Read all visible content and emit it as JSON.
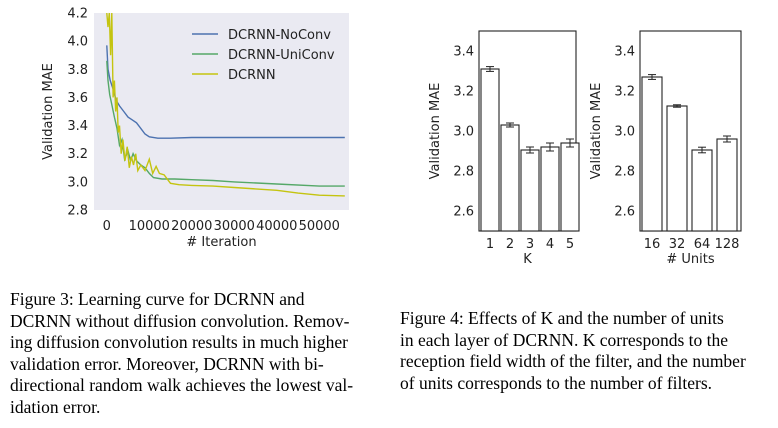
{
  "figure3": {
    "chart_data": {
      "type": "line",
      "ylabel": "Validation MAE",
      "xlabel": "# Iteration",
      "xlim": [
        -3000,
        57000
      ],
      "ylim": [
        2.8,
        4.2
      ],
      "xticks": [
        0,
        10000,
        20000,
        30000,
        40000,
        50000
      ],
      "yticks": [
        2.8,
        3.0,
        3.2,
        3.4,
        3.6,
        3.8,
        4.0,
        4.2
      ],
      "xtick_labels": [
        "0",
        "10000",
        "20000",
        "30000",
        "40000",
        "50000"
      ],
      "ytick_labels": [
        "2.8",
        "3.0",
        "3.2",
        "3.4",
        "3.6",
        "3.8",
        "4.0",
        "4.2"
      ],
      "legend_position": "top-right",
      "series": [
        {
          "name": "DCRNN-NoConv",
          "color": "#4c72b0",
          "x": [
            0,
            300,
            800,
            1500,
            2200,
            3000,
            4000,
            5000,
            6000,
            7000,
            8000,
            9000,
            10000,
            12000,
            15000,
            20000,
            30000,
            40000,
            50000,
            56000
          ],
          "y": [
            3.97,
            3.8,
            3.72,
            3.66,
            3.58,
            3.54,
            3.5,
            3.46,
            3.44,
            3.42,
            3.38,
            3.34,
            3.32,
            3.31,
            3.31,
            3.315,
            3.315,
            3.315,
            3.315,
            3.315
          ]
        },
        {
          "name": "DCRNN-UniConv",
          "color": "#55a868",
          "x": [
            0,
            300,
            700,
            1200,
            1800,
            2400,
            3000,
            3600,
            4200,
            5000,
            5600,
            6200,
            7000,
            8000,
            9000,
            10000,
            11000,
            13000,
            16000,
            20000,
            25000,
            30000,
            40000,
            50000,
            56000
          ],
          "y": [
            3.86,
            3.72,
            3.62,
            3.55,
            3.46,
            3.38,
            3.26,
            3.3,
            3.16,
            3.22,
            3.15,
            3.2,
            3.15,
            3.12,
            3.1,
            3.06,
            3.03,
            3.02,
            3.02,
            3.015,
            3.01,
            3.0,
            2.985,
            2.97,
            2.97
          ]
        },
        {
          "name": "DCRNN",
          "color": "#c4c410",
          "x": [
            0,
            300,
            600,
            900,
            1200,
            1500,
            1800,
            2100,
            2400,
            2700,
            3000,
            3400,
            3800,
            4300,
            4800,
            5300,
            5800,
            6300,
            6800,
            7300,
            8000,
            9000,
            10000,
            10800,
            11600,
            12400,
            13500,
            15000,
            17000,
            20000,
            25000,
            30000,
            35000,
            40000,
            45000,
            50000,
            56000
          ],
          "y": [
            4.2,
            4.1,
            4.2,
            3.9,
            4.2,
            3.6,
            3.72,
            3.5,
            3.6,
            3.35,
            3.4,
            3.2,
            3.3,
            3.15,
            3.25,
            3.1,
            3.18,
            3.12,
            3.2,
            3.08,
            3.12,
            3.08,
            3.16,
            3.06,
            3.11,
            3.06,
            3.05,
            2.99,
            2.98,
            2.975,
            2.97,
            2.96,
            2.95,
            2.94,
            2.92,
            2.905,
            2.9
          ]
        }
      ]
    },
    "caption_lines": [
      "Figure 3:  Learning curve for DCRNN and",
      "DCRNN without diffusion convolution. Remov-",
      "ing diffusion convolution results in much higher",
      "validation error.  Moreover, DCRNN with bi-",
      "directional random walk achieves the lowest val-",
      "idation error."
    ]
  },
  "figure4": {
    "chart_data": [
      {
        "type": "bar",
        "ylabel": "Validation MAE",
        "xlabel": "K",
        "categories": [
          "1",
          "2",
          "3",
          "4",
          "5"
        ],
        "values": [
          3.31,
          3.03,
          2.905,
          2.92,
          2.94
        ],
        "errors": [
          0.012,
          0.01,
          0.015,
          0.02,
          0.02
        ],
        "ylim": [
          2.5,
          3.5
        ],
        "yticks": [
          2.6,
          2.8,
          3.0,
          3.2,
          3.4
        ],
        "ytick_labels": [
          "2.6",
          "2.8",
          "3.0",
          "3.2",
          "3.4"
        ]
      },
      {
        "type": "bar",
        "ylabel": "Validation MAE",
        "xlabel": "# Units",
        "categories": [
          "16",
          "32",
          "64",
          "128"
        ],
        "values": [
          3.27,
          3.125,
          2.905,
          2.96
        ],
        "errors": [
          0.012,
          0.006,
          0.014,
          0.015
        ],
        "ylim": [
          2.5,
          3.5
        ],
        "yticks": [
          2.6,
          2.8,
          3.0,
          3.2,
          3.4
        ],
        "ytick_labels": [
          "2.6",
          "2.8",
          "3.0",
          "3.2",
          "3.4"
        ]
      }
    ],
    "caption_lines": [
      "Figure 4: Effects of K and the number of units",
      "in each layer of DCRNN. K corresponds to the",
      "reception field width of the filter, and the number",
      "of units corresponds to the number of filters."
    ]
  }
}
